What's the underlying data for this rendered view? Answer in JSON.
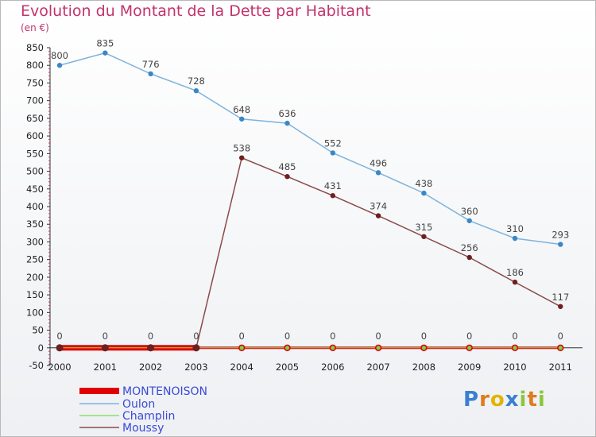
{
  "chart_data": {
    "type": "line",
    "title": "Evolution du Montant de la Dette par Habitant",
    "subtitle": "(en €)",
    "x": [
      "2000",
      "2001",
      "2002",
      "2003",
      "2004",
      "2005",
      "2006",
      "2007",
      "2008",
      "2009",
      "2010",
      "2011"
    ],
    "ylim": [
      -50,
      850
    ],
    "yticks": [
      -50,
      0,
      50,
      100,
      150,
      200,
      250,
      300,
      350,
      400,
      450,
      500,
      550,
      600,
      650,
      700,
      750,
      800,
      850
    ],
    "grid": false,
    "legend_position": "bottom-left",
    "series": [
      {
        "name": "MONTENOISON",
        "color": "#e00000",
        "values": [
          0,
          0,
          0,
          0,
          0,
          0,
          0,
          0,
          0,
          0,
          0,
          0
        ]
      },
      {
        "name": "Oulon",
        "color": "#7fb3dc",
        "marker": "#3a87c8",
        "values": [
          800,
          835,
          776,
          728,
          648,
          636,
          552,
          496,
          438,
          360,
          310,
          293
        ]
      },
      {
        "name": "Champlin",
        "color": "#8fe06a",
        "marker": "#7ad34a",
        "values": [
          0,
          0,
          0,
          0,
          0,
          0,
          0,
          0,
          0,
          0,
          0,
          0
        ]
      },
      {
        "name": "Moussy",
        "color": "#8a4a4a",
        "marker": "#6e1f1f",
        "values": [
          0,
          0,
          0,
          0,
          538,
          485,
          431,
          374,
          315,
          256,
          186,
          117
        ]
      }
    ]
  },
  "brand": {
    "letters": [
      "P",
      "r",
      "o",
      "x",
      "i",
      "t",
      "i"
    ],
    "colors": [
      "#3a7fd0",
      "#e07a20",
      "#e2b400",
      "#3a7fd0",
      "#8cc63f",
      "#e07a20",
      "#8cc63f"
    ]
  }
}
